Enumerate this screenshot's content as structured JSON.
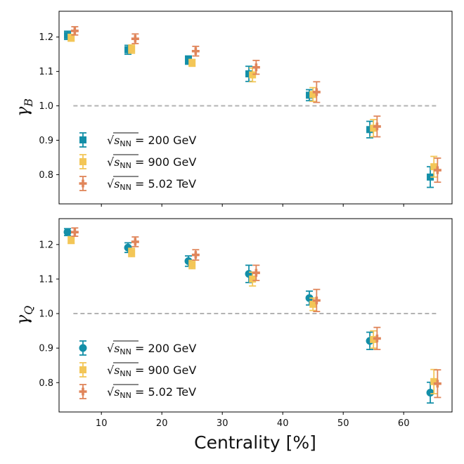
{
  "chart_data": [
    {
      "type": "scatter",
      "panel": "top",
      "ylabel_symbol": "γ",
      "ylabel_subscript": "B",
      "xlabel": "",
      "xlim": [
        3,
        68
      ],
      "ylim": [
        0.715,
        1.275
      ],
      "yticks": [
        0.8,
        0.9,
        1.0,
        1.1,
        1.2
      ],
      "xticks": [
        10,
        20,
        30,
        40,
        50,
        60
      ],
      "reference_line": 1.0,
      "legend_position": "lower-left",
      "series": [
        {
          "name": "200 GeV",
          "legend_prefix": "√",
          "legend_var": "s",
          "legend_sub": "NN",
          "legend_value": " = 200 GeV",
          "color": "#138fa8",
          "marker": "square",
          "x": [
            4.4,
            14.4,
            24.4,
            34.4,
            44.4,
            54.4,
            64.4
          ],
          "y": [
            1.205,
            1.163,
            1.133,
            1.093,
            1.031,
            0.931,
            0.793
          ],
          "err": [
            0.012,
            0.013,
            0.012,
            0.022,
            0.016,
            0.024,
            0.03
          ]
        },
        {
          "name": "900 GeV",
          "legend_prefix": "√",
          "legend_var": "s",
          "legend_sub": "NN",
          "legend_value": " = 900 GeV",
          "color": "#f3c657",
          "marker": "square",
          "x": [
            5.0,
            15.0,
            25.0,
            35.0,
            45.0,
            55.0,
            65.0
          ],
          "y": [
            1.198,
            1.165,
            1.125,
            1.09,
            1.033,
            0.935,
            0.823
          ],
          "err": [
            0.01,
            0.012,
            0.01,
            0.02,
            0.02,
            0.025,
            0.03
          ]
        },
        {
          "name": "5.02 TeV",
          "legend_prefix": "√",
          "legend_var": "s",
          "legend_sub": "NN",
          "legend_value": " = 5.02 TeV",
          "color": "#e0855a",
          "marker": "plus",
          "x": [
            5.6,
            15.6,
            25.6,
            35.6,
            45.6,
            55.6,
            65.6
          ],
          "y": [
            1.218,
            1.195,
            1.159,
            1.112,
            1.04,
            0.94,
            0.813
          ],
          "err": [
            0.012,
            0.014,
            0.014,
            0.02,
            0.03,
            0.03,
            0.035
          ]
        }
      ]
    },
    {
      "type": "scatter",
      "panel": "bottom",
      "ylabel_symbol": "γ",
      "ylabel_subscript": "Q",
      "xlabel": "Centrality [%]",
      "xlim": [
        3,
        68
      ],
      "ylim": [
        0.715,
        1.275
      ],
      "yticks": [
        0.8,
        0.9,
        1.0,
        1.1,
        1.2
      ],
      "xticks": [
        10,
        20,
        30,
        40,
        50,
        60
      ],
      "xtick_labels": [
        "10",
        "20",
        "30",
        "40",
        "50",
        "60"
      ],
      "reference_line": 1.0,
      "legend_position": "lower-left",
      "series": [
        {
          "name": "200 GeV",
          "legend_prefix": "√",
          "legend_var": "s",
          "legend_sub": "NN",
          "legend_value": " = 200 GeV",
          "color": "#138fa8",
          "marker": "circle",
          "x": [
            4.4,
            14.4,
            24.4,
            34.4,
            44.4,
            54.4,
            64.4
          ],
          "y": [
            1.236,
            1.191,
            1.152,
            1.115,
            1.045,
            0.921,
            0.771
          ],
          "err": [
            0.01,
            0.014,
            0.015,
            0.025,
            0.02,
            0.025,
            0.03
          ]
        },
        {
          "name": "900 GeV",
          "legend_prefix": "√",
          "legend_var": "s",
          "legend_sub": "NN",
          "legend_value": " = 900 GeV",
          "color": "#f3c657",
          "marker": "square",
          "x": [
            5.0,
            15.0,
            25.0,
            35.0,
            45.0,
            55.0,
            65.0
          ],
          "y": [
            1.213,
            1.177,
            1.142,
            1.1,
            1.027,
            0.925,
            0.803
          ],
          "err": [
            0.01,
            0.012,
            0.012,
            0.02,
            0.018,
            0.025,
            0.035
          ]
        },
        {
          "name": "5.02 TeV",
          "legend_prefix": "√",
          "legend_var": "s",
          "legend_sub": "NN",
          "legend_value": " = 5.02 TeV",
          "color": "#e0855a",
          "marker": "plus",
          "x": [
            5.6,
            15.6,
            25.6,
            35.6,
            45.6,
            55.6,
            65.6
          ],
          "y": [
            1.236,
            1.208,
            1.17,
            1.118,
            1.038,
            0.928,
            0.797
          ],
          "err": [
            0.012,
            0.014,
            0.015,
            0.022,
            0.032,
            0.032,
            0.04
          ]
        }
      ]
    }
  ]
}
